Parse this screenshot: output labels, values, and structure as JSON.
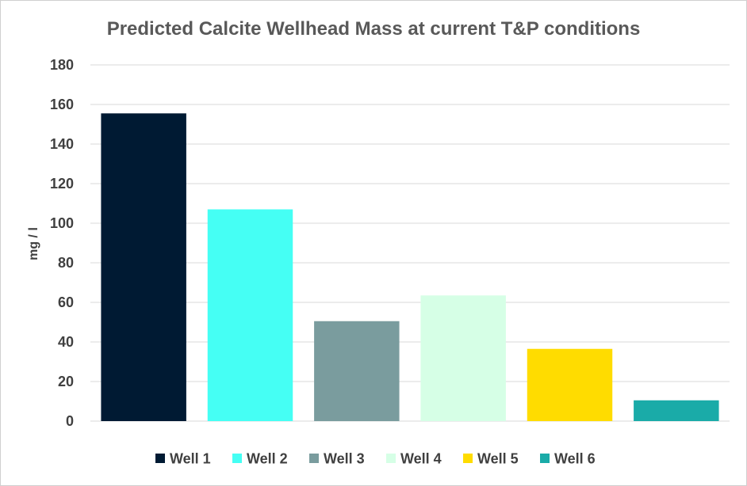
{
  "chart_data": {
    "type": "bar",
    "title": "Predicted Calcite Wellhead Mass at current T&P conditions",
    "ylabel": "mg / l",
    "xlabel": "",
    "ylim": [
      0,
      180
    ],
    "yticks": [
      0,
      20,
      40,
      60,
      80,
      100,
      120,
      140,
      160,
      180
    ],
    "grid": true,
    "legend_position": "bottom",
    "series": [
      {
        "name": "Well 1",
        "value": 155.5,
        "color": "#001a33"
      },
      {
        "name": "Well 2",
        "value": 107,
        "color": "#45fff4"
      },
      {
        "name": "Well 3",
        "value": 50.5,
        "color": "#7a9c9e"
      },
      {
        "name": "Well 4",
        "value": 63.5,
        "color": "#d6ffe6"
      },
      {
        "name": "Well 5",
        "value": 36.5,
        "color": "#ffdc00"
      },
      {
        "name": "Well 6",
        "value": 10.5,
        "color": "#1aaba8"
      }
    ]
  }
}
